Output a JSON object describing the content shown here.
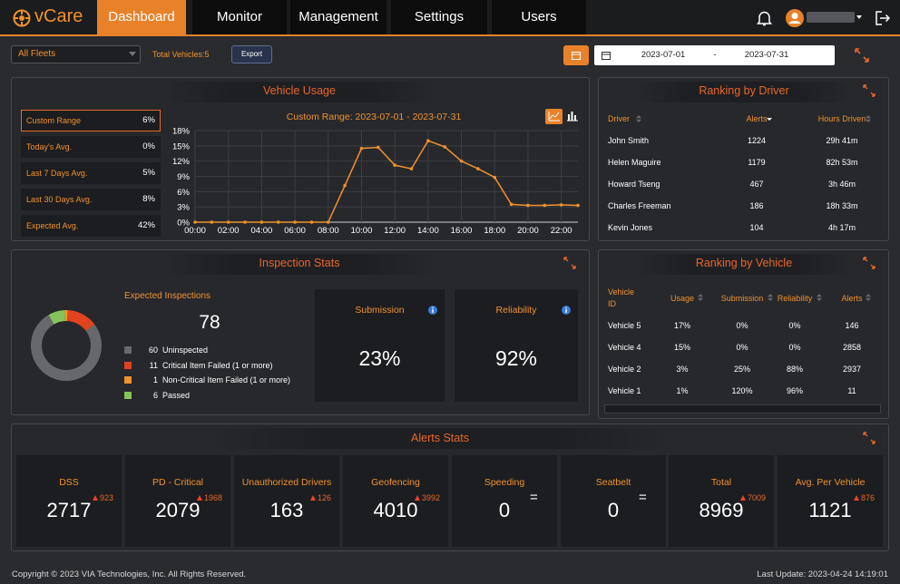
{
  "header": {
    "logo": "vCare",
    "nav": [
      "Dashboard",
      "Monitor",
      "Management",
      "Settings",
      "Users"
    ]
  },
  "filters": {
    "fleet": "All Fleets",
    "total_vehicles": "Total Vehicles:5",
    "export": "Export",
    "date_from": "2023-07-01",
    "date_separator": "-",
    "date_to": "2023-07-31"
  },
  "vehicle_usage": {
    "stats": [
      {
        "label": "Custom Range",
        "value": "6%"
      },
      {
        "label": "Today's Avg.",
        "value": "0%"
      },
      {
        "label": "Last 7 Days Avg.",
        "value": "5%"
      },
      {
        "label": "Last 30 Days Avg.",
        "value": "8%"
      },
      {
        "label": "Expected Avg.",
        "value": "42%"
      }
    ]
  },
  "chart_data": [
    {
      "type": "line",
      "title": "Vehicle Usage",
      "subtitle": "Custom Range: 2023-07-01 - 2023-07-31",
      "x": [
        0,
        1,
        2,
        3,
        4,
        5,
        6,
        7,
        8,
        9,
        10,
        11,
        12,
        13,
        14,
        15,
        16,
        17,
        18,
        19,
        20,
        21,
        22,
        23
      ],
      "values": [
        0,
        0,
        0,
        0,
        0,
        0,
        0,
        0,
        0,
        7.2,
        14.5,
        14.7,
        11.2,
        10.5,
        16,
        14.8,
        12,
        10.5,
        8.8,
        3.5,
        3.3,
        3.3,
        3.4,
        3.3
      ],
      "color": "#f0922e",
      "xlim": [
        0,
        23
      ],
      "xticks": [
        {
          "value": 0,
          "label": "00:00"
        },
        {
          "value": 2,
          "label": "02:00"
        },
        {
          "value": 4,
          "label": "04:00"
        },
        {
          "value": 6,
          "label": "06:00"
        },
        {
          "value": 8,
          "label": "08:00"
        },
        {
          "value": 10,
          "label": "10:00"
        },
        {
          "value": 12,
          "label": "12:00"
        },
        {
          "value": 14,
          "label": "14:00"
        },
        {
          "value": 16,
          "label": "16:00"
        },
        {
          "value": 18,
          "label": "18:00"
        },
        {
          "value": 20,
          "label": "20:00"
        },
        {
          "value": 22,
          "label": "22:00"
        }
      ],
      "ylim": [
        0,
        18
      ],
      "yticks": [
        {
          "value": 0,
          "label": "0%"
        },
        {
          "value": 3,
          "label": "3%"
        },
        {
          "value": 6,
          "label": "6%"
        },
        {
          "value": 9,
          "label": "9%"
        },
        {
          "value": 12,
          "label": "12%"
        },
        {
          "value": 15,
          "label": "15%"
        },
        {
          "value": 18,
          "label": "18%"
        }
      ],
      "grid": true
    },
    {
      "type": "pie",
      "title": "Expected Inspections",
      "total": 78,
      "categories": [
        "Uninspected",
        "Critical Item Failed (1 or more)",
        "Non-Critical Item Failed (1 or more)",
        "Passed"
      ],
      "values": [
        60,
        11,
        1,
        6
      ],
      "colors": [
        "#67686b",
        "#e2431f",
        "#f0922e",
        "#86c45a"
      ]
    }
  ],
  "inspection_stats": {
    "title": "Inspection Stats",
    "submission": {
      "label": "Submission",
      "value": "23%"
    },
    "reliability": {
      "label": "Reliability",
      "value": "92%"
    }
  },
  "ranking_by_driver": {
    "title": "Ranking by Driver",
    "columns": [
      "Driver",
      "Alerts",
      "Hours Driven"
    ],
    "rows": [
      [
        "John Smith",
        "1224",
        "29h 41m"
      ],
      [
        "Helen Maguire",
        "1179",
        "82h 53m"
      ],
      [
        "Howard Tseng",
        "467",
        "3h 46m"
      ],
      [
        "Charles Freeman",
        "186",
        "18h 33m"
      ],
      [
        "Kevin Jones",
        "104",
        "4h 17m"
      ]
    ]
  },
  "ranking_by_vehicle": {
    "title": "Ranking by Vehicle",
    "columns": [
      "Vehicle ID",
      "Usage",
      "Submission",
      "Reliability",
      "Alerts"
    ],
    "rows": [
      [
        "Vehicle 5",
        "17%",
        "0%",
        "0%",
        "146"
      ],
      [
        "Vehicle 4",
        "15%",
        "0%",
        "0%",
        "2858"
      ],
      [
        "Vehicle 2",
        "3%",
        "25%",
        "88%",
        "2937"
      ],
      [
        "Vehicle 1",
        "1%",
        "120%",
        "96%",
        "11"
      ]
    ]
  },
  "alerts_stats": {
    "title": "Alerts Stats",
    "cards": [
      {
        "label": "DSS",
        "value": "2717",
        "change": "923"
      },
      {
        "label": "PD - Critical",
        "value": "2079",
        "change": "1968"
      },
      {
        "label": "Unauthorized Drivers",
        "value": "163",
        "change": "126"
      },
      {
        "label": "Geofencing",
        "value": "4010",
        "change": "3992"
      },
      {
        "label": "Speeding",
        "value": "0",
        "change": "="
      },
      {
        "label": "Seatbelt",
        "value": "0",
        "change": "="
      },
      {
        "label": "Total",
        "value": "8969",
        "change": "7009"
      },
      {
        "label": "Avg. Per Vehicle",
        "value": "1121",
        "change": "876"
      }
    ]
  },
  "footer": {
    "copyright": "Copyright © 2023 VIA Technologies, Inc. All Rights Reserved.",
    "last_update": "Last Update: 2023-04-24 14:19:01"
  }
}
